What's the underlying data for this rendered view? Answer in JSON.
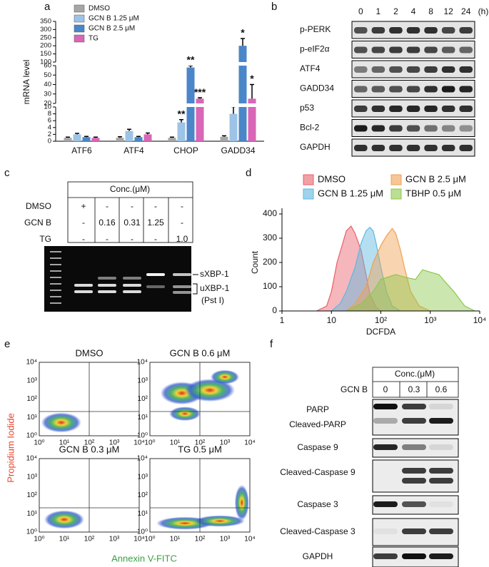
{
  "panel_labels": [
    "a",
    "b",
    "c",
    "d",
    "e",
    "f"
  ],
  "chart_data": [
    {
      "type": "bar",
      "y_label": "mRNA level",
      "categories": [
        "ATF6",
        "ATF4",
        "CHOP",
        "GADD34"
      ],
      "series": [
        {
          "name": "DMSO",
          "color": "#a6a6a6",
          "values": [
            1,
            1,
            1,
            1.3
          ],
          "errors": [
            0.2,
            0.3,
            0.2,
            0.3
          ],
          "annotations": [
            null,
            null,
            null,
            null
          ]
        },
        {
          "name": "GCN B 1.25 μM",
          "color": "#9dc3e6",
          "values": [
            2,
            3,
            5.5,
            8
          ],
          "errors": [
            0.3,
            0.5,
            0.8,
            3
          ],
          "annotations": [
            null,
            null,
            "**",
            null
          ]
        },
        {
          "name": "GCN B 2.5 μM",
          "color": "#4a86c8",
          "values": [
            1.2,
            1.2,
            58,
            200
          ],
          "errors": [
            0.2,
            0.2,
            2,
            45
          ],
          "annotations": [
            null,
            null,
            "**",
            "*"
          ]
        },
        {
          "name": "TG",
          "color": "#d966b6",
          "values": [
            1,
            2,
            25,
            25
          ],
          "errors": [
            0.2,
            0.4,
            1,
            15
          ],
          "annotations": [
            null,
            null,
            "***",
            "*"
          ]
        }
      ],
      "ylim": [
        0,
        350
      ],
      "axis_segments": [
        [
          0,
          10
        ],
        [
          20,
          60
        ],
        [
          100,
          350
        ]
      ],
      "yticks": [
        0,
        2,
        4,
        6,
        8,
        10,
        20,
        30,
        40,
        50,
        60,
        100,
        150,
        200,
        250,
        300,
        350
      ]
    },
    {
      "type": "area",
      "x_label": "DCFDA",
      "y_label": "Count",
      "log_x": true,
      "xlim": [
        1,
        10000
      ],
      "xticks": [
        1,
        10,
        {
          "value": 100,
          "label": "10²"
        },
        {
          "value": 1000,
          "label": "10³"
        },
        {
          "value": 10000,
          "label": "10⁴"
        }
      ],
      "ylim": [
        0,
        400
      ],
      "yticks": [
        0,
        100,
        200,
        300,
        400
      ],
      "series": [
        {
          "name": "DMSO",
          "color": "#e8606a",
          "x": [
            5,
            8,
            10,
            13,
            17,
            20,
            25,
            30,
            40,
            50,
            60,
            80,
            100
          ],
          "y": [
            0,
            20,
            80,
            200,
            280,
            330,
            350,
            320,
            250,
            150,
            70,
            15,
            0
          ]
        },
        {
          "name": "GCN B 1.25 μM",
          "color": "#5bb8e0",
          "x": [
            10,
            15,
            20,
            30,
            40,
            50,
            60,
            70,
            80,
            100,
            130,
            170,
            250
          ],
          "y": [
            0,
            30,
            80,
            180,
            280,
            330,
            345,
            330,
            280,
            180,
            80,
            20,
            0
          ]
        },
        {
          "name": "GCN B 2.5 μM",
          "color": "#f0a050",
          "x": [
            20,
            30,
            50,
            70,
            100,
            130,
            170,
            200,
            250,
            300,
            400,
            600,
            1000
          ],
          "y": [
            0,
            30,
            100,
            200,
            270,
            310,
            340,
            320,
            250,
            180,
            80,
            20,
            0
          ]
        },
        {
          "name": "TBHP 0.5 μM",
          "color": "#8cc84b",
          "x": [
            20,
            40,
            70,
            100,
            200,
            300,
            500,
            700,
            1000,
            1500,
            2000,
            3000,
            5000,
            8000
          ],
          "y": [
            0,
            30,
            80,
            130,
            150,
            140,
            130,
            170,
            160,
            150,
            120,
            80,
            20,
            0
          ]
        }
      ]
    }
  ],
  "blot_b": {
    "lanes": [
      "0",
      "1",
      "2",
      "4",
      "8",
      "12",
      "24"
    ],
    "unit": "(h)",
    "proteins": [
      "p-PERK",
      "p-eIF2α",
      "ATF4",
      "GADD34",
      "p53",
      "Bcl-2",
      "GAPDH"
    ]
  },
  "gel_c": {
    "header": "Conc.(μM)",
    "rows": [
      {
        "label": "DMSO",
        "cells": [
          "+",
          "-",
          "-",
          "-",
          "-"
        ]
      },
      {
        "label": "GCN B",
        "cells": [
          "-",
          "0.16",
          "0.31",
          "1.25",
          "-"
        ]
      },
      {
        "label": "TG",
        "cells": [
          "-",
          "-",
          "-",
          "-",
          "1.0"
        ]
      }
    ],
    "bands": [
      "sXBP-1",
      "uXBP-1",
      "(Pst I)"
    ]
  },
  "flow_e": {
    "plots": [
      "DMSO",
      "GCN B  0.6 μM",
      "GCN B  0.3 μM",
      "TG   0.5 μM"
    ],
    "ticks": [
      "10⁰",
      "10¹",
      "10²",
      "10³",
      "10⁴"
    ],
    "y_label": "Propidium Iodide",
    "x_label": "Annexin V-FITC"
  },
  "blot_f": {
    "header": "Conc.(μM)",
    "row_label": "GCN B",
    "lanes": [
      "0",
      "0.3",
      "0.6"
    ],
    "proteins": [
      "PARP",
      "Cleaved-PARP",
      "Caspase 9",
      "Cleaved-Caspase 9",
      "Caspase 3",
      "Cleaved-Caspase 3",
      "GAPDH"
    ]
  }
}
